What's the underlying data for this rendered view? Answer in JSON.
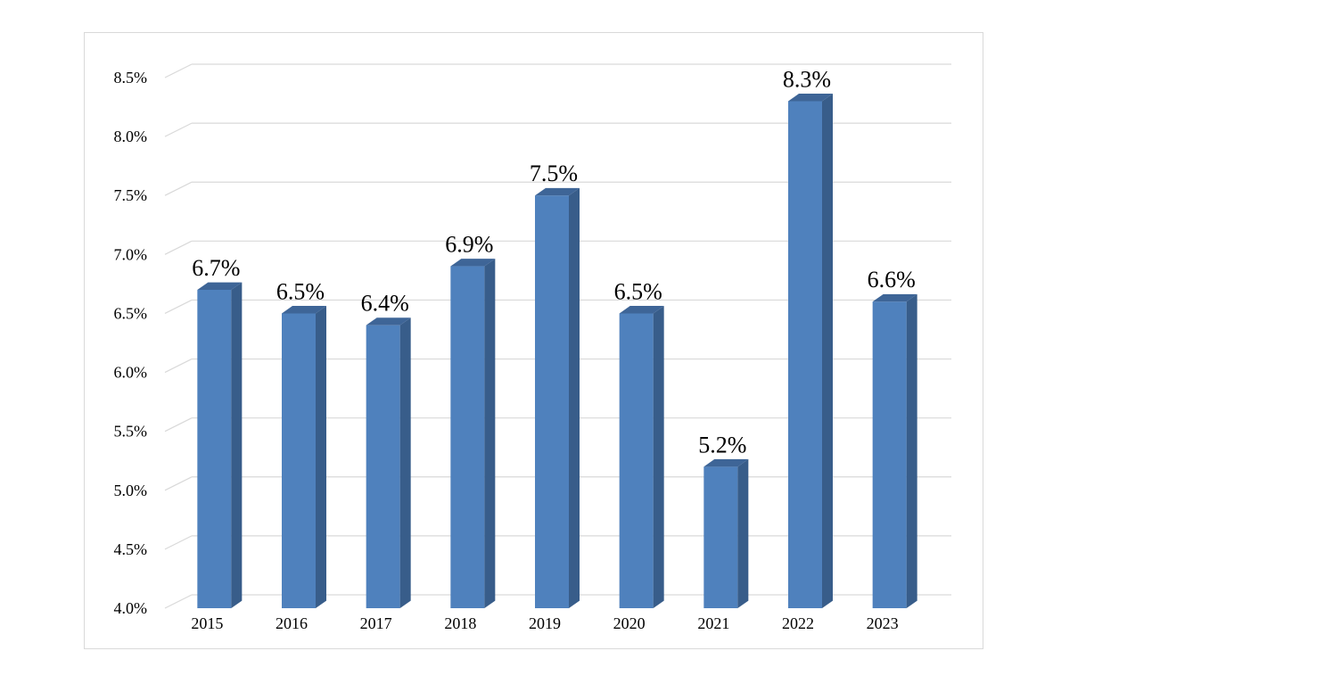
{
  "chart_data": {
    "type": "bar",
    "style": "3d-column",
    "categories": [
      "2015",
      "2016",
      "2017",
      "2018",
      "2019",
      "2020",
      "2021",
      "2022",
      "2023"
    ],
    "values": [
      6.7,
      6.5,
      6.4,
      6.9,
      7.5,
      6.5,
      5.2,
      8.3,
      6.6
    ],
    "data_labels": [
      "6.7%",
      "6.5%",
      "6.4%",
      "6.9%",
      "7.5%",
      "6.5%",
      "5.2%",
      "8.3%",
      "6.6%"
    ],
    "ylim": [
      4.0,
      8.5
    ],
    "yticks": [
      4.0,
      4.5,
      5.0,
      5.5,
      6.0,
      6.5,
      7.0,
      7.5,
      8.0,
      8.5
    ],
    "ytick_labels": [
      "4.0%",
      "4.5%",
      "5.0%",
      "5.5%",
      "6.0%",
      "6.5%",
      "7.0%",
      "7.5%",
      "8.0%",
      "8.5%"
    ],
    "grid": true,
    "legend": "none",
    "colors": {
      "bar_front": "#4f81bd",
      "bar_side": "#385d8a",
      "bar_top": "#3e6597",
      "grid": "#d9d9d9",
      "frame": "#d9d9d9"
    }
  }
}
